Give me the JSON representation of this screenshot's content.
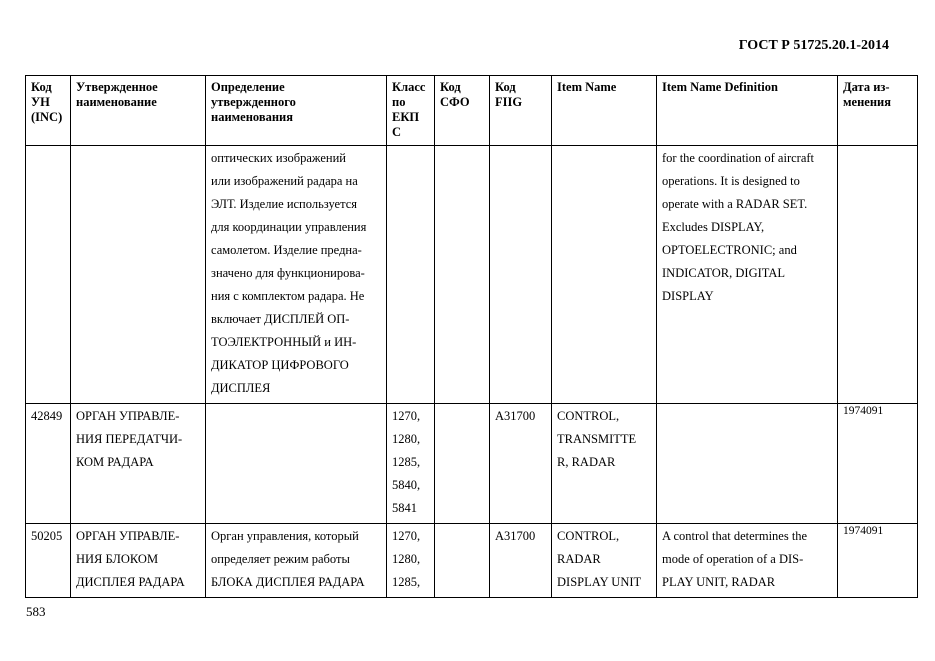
{
  "header": "ГОСТ Р 51725.20.1-2014",
  "page_number": "583",
  "columns": [
    [
      "Код",
      "УН",
      "(INC)"
    ],
    [
      "Утвержденное",
      "наименование"
    ],
    [
      "Определение",
      "утвержденного",
      "наименования"
    ],
    [
      "Класс",
      "по",
      "ЕКП",
      "С"
    ],
    [
      "Код",
      "СФО"
    ],
    [
      "Код",
      "FIIG"
    ],
    [
      "Item Name"
    ],
    [
      "Item Name Definition"
    ],
    [
      "Дата из-",
      "менения"
    ]
  ],
  "rows": [
    [
      [],
      [],
      [
        "оптических изображений",
        "или изображений радара на",
        "ЭЛТ. Изделие используется",
        "для координации управления",
        "самолетом. Изделие предна-",
        "значено для функционирова-",
        "ния с комплектом радара. Не",
        "включает ДИСПЛЕЙ ОП-",
        "ТОЭЛЕКТРОННЫЙ и ИН-",
        "ДИКАТОР ЦИФРОВОГО",
        "ДИСПЛЕЯ"
      ],
      [],
      [],
      [],
      [],
      [
        "for the coordination of aircraft",
        "operations. It is designed to",
        "operate with a RADAR SET.",
        "Excludes DISPLAY,",
        "OPTOELECTRONIC; and",
        "INDICATOR, DIGITAL",
        "DISPLAY"
      ],
      []
    ],
    [
      [
        "42849"
      ],
      [
        "ОРГАН УПРАВЛЕ-",
        "НИЯ ПЕРЕДАТЧИ-",
        "КОМ РАДАРА"
      ],
      [],
      [
        "1270,",
        "1280,",
        "1285,",
        "5840,",
        "5841"
      ],
      [],
      [
        "A31700"
      ],
      [
        "CONTROL,",
        "TRANSMITTE",
        "R, RADAR"
      ],
      [],
      [
        "1974091"
      ]
    ],
    [
      [
        "50205"
      ],
      [
        "ОРГАН УПРАВЛЕ-",
        "НИЯ БЛОКОМ",
        "ДИСПЛЕЯ РАДАРА"
      ],
      [
        "Орган управления, который",
        "определяет режим работы",
        "БЛОКА ДИСПЛЕЯ РАДАРА"
      ],
      [
        "1270,",
        "1280,",
        "1285,"
      ],
      [],
      [
        "A31700"
      ],
      [
        "CONTROL,",
        "RADAR",
        "DISPLAY UNIT"
      ],
      [
        "A control that determines the",
        "mode of operation of a DIS-",
        "PLAY UNIT, RADAR"
      ],
      [
        "1974091"
      ]
    ]
  ]
}
